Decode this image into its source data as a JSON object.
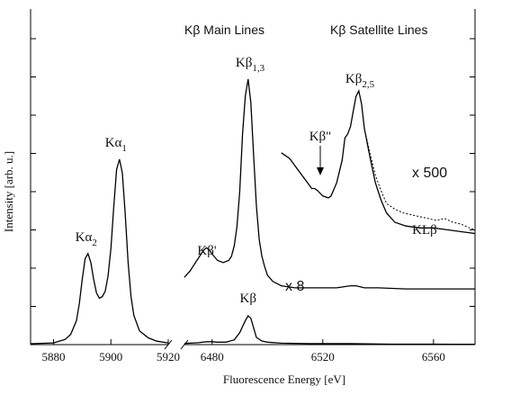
{
  "chart_data": {
    "type": "line",
    "xlabel": "Fluorescence Energy [eV]",
    "ylabel": "Intensity [arb. u.]",
    "panels": [
      {
        "name": "Kα",
        "xlim": [
          5872,
          5920
        ],
        "xticks": [
          5880,
          5900,
          5920
        ],
        "series": [
          {
            "x": [
              5872,
              5880,
              5884,
              5886,
              5888,
              5889,
              5890,
              5891,
              5892,
              5893,
              5894,
              5895,
              5896,
              5897,
              5898,
              5899,
              5900,
              5901,
              5902,
              5903,
              5904,
              5905,
              5906,
              5907,
              5908,
              5910,
              5913,
              5916,
              5920
            ],
            "y": [
              0.5,
              1,
              3,
              6,
              14,
              24,
              38,
              50,
              53,
              48,
              38,
              30,
              27,
              28,
              31,
              40,
              56,
              80,
              102,
              108,
              100,
              76,
              48,
              28,
              17,
              8,
              4,
              2,
              1
            ]
          }
        ],
        "annotations": [
          {
            "text": "Kα",
            "sub": "2",
            "x": 5892,
            "y": 53
          },
          {
            "text": "Kα",
            "sub": "1",
            "x": 5903,
            "y": 108
          }
        ]
      },
      {
        "name": "Kβ",
        "xlim": [
          6470,
          6575
        ],
        "xticks": [
          6480,
          6520,
          6560
        ],
        "scale_text": "x 8",
        "series": [
          {
            "name": "Kβ",
            "x": [
              6470,
              6475,
              6478,
              6480,
              6482,
              6485,
              6488,
              6490,
              6492,
              6493,
              6494,
              6495,
              6496,
              6498,
              6500,
              6505,
              6515,
              6530,
              6545,
              6560,
              6575
            ],
            "y": [
              0.5,
              0.8,
              1.2,
              1.2,
              1,
              1,
              2,
              5,
              10,
              12,
              11,
              7,
              3,
              1.5,
              1,
              0.6,
              0.4,
              0.4,
              0.2,
              0.2,
              0.1
            ]
          },
          {
            "name": "x 8",
            "x": [
              6470,
              6472,
              6474,
              6476,
              6477,
              6478,
              6479,
              6480,
              6482,
              6484,
              6486,
              6487,
              6488,
              6489,
              6490,
              6491,
              6492,
              6493,
              6494,
              6495,
              6496,
              6497,
              6498,
              6499,
              6500,
              6502,
              6505,
              6510,
              6515,
              6520,
              6525,
              6530,
              6532,
              6535,
              6540,
              6550,
              6560,
              6575
            ],
            "y": [
              14,
              17,
              21,
              25,
              27,
              28,
              27,
              25,
              22,
              21,
              22,
              24,
              29,
              38,
              55,
              82,
              100,
              108,
              97,
              72,
              48,
              32,
              24,
              19,
              15,
              12,
              10,
              9,
              9,
              9,
              9,
              10,
              10,
              9,
              9,
              8.5,
              8.5,
              8.5
            ]
          }
        ],
        "annotations": [
          {
            "text": "Kβ",
            "sub": "",
            "x": 6493,
            "y": 12
          },
          {
            "text": "Kβ'",
            "sub": "",
            "x": 6478,
            "y": 28
          },
          {
            "text": "Kβ",
            "sub": "1,3",
            "x": 6493,
            "y": 108
          }
        ]
      },
      {
        "name": "Kβ satellite",
        "xlim": [
          6470,
          6575
        ],
        "scale_text": "x 500",
        "series": [
          {
            "name": "solid",
            "x": [
              6505,
              6508,
              6511,
              6513,
              6515,
              6516,
              6517,
              6518,
              6520,
              6522,
              6523,
              6525,
              6527,
              6528,
              6529,
              6530,
              6531,
              6532,
              6533,
              6534,
              6535,
              6537,
              6539,
              6541,
              6543,
              6546,
              6550,
              6555,
              6560,
              6565,
              6570,
              6575
            ],
            "y": [
              60,
              57,
              51,
              47,
              43,
              41,
              41,
              40,
              37,
              36,
              37,
              44,
              56,
              68,
              70,
              74,
              82,
              90,
              93,
              86,
              73,
              58,
              44,
              35,
              28,
              23,
              21,
              20,
              20,
              19,
              18,
              17
            ]
          },
          {
            "name": "dashed",
            "x": [
              6535,
              6537,
              6539,
              6541,
              6543,
              6546,
              6549,
              6552,
              6555,
              6558,
              6561,
              6564,
              6567,
              6570,
              6573,
              6575
            ],
            "y": [
              73,
              60,
              48,
              40,
              33,
              30,
              28,
              27,
              26,
              25,
              24,
              25,
              23,
              22,
              20,
              19
            ]
          }
        ],
        "annotations": [
          {
            "text": "Kβ",
            "sub": "2,5",
            "x": 6533,
            "y": 93
          },
          {
            "text": "Kβ\"",
            "sub": "",
            "x": 6517,
            "y": 41
          },
          {
            "text": "KLβ",
            "sub": "",
            "x": 6558,
            "y": 26
          }
        ]
      }
    ],
    "headings": [
      "Kβ Main Lines",
      "Kβ Satellite Lines"
    ]
  }
}
